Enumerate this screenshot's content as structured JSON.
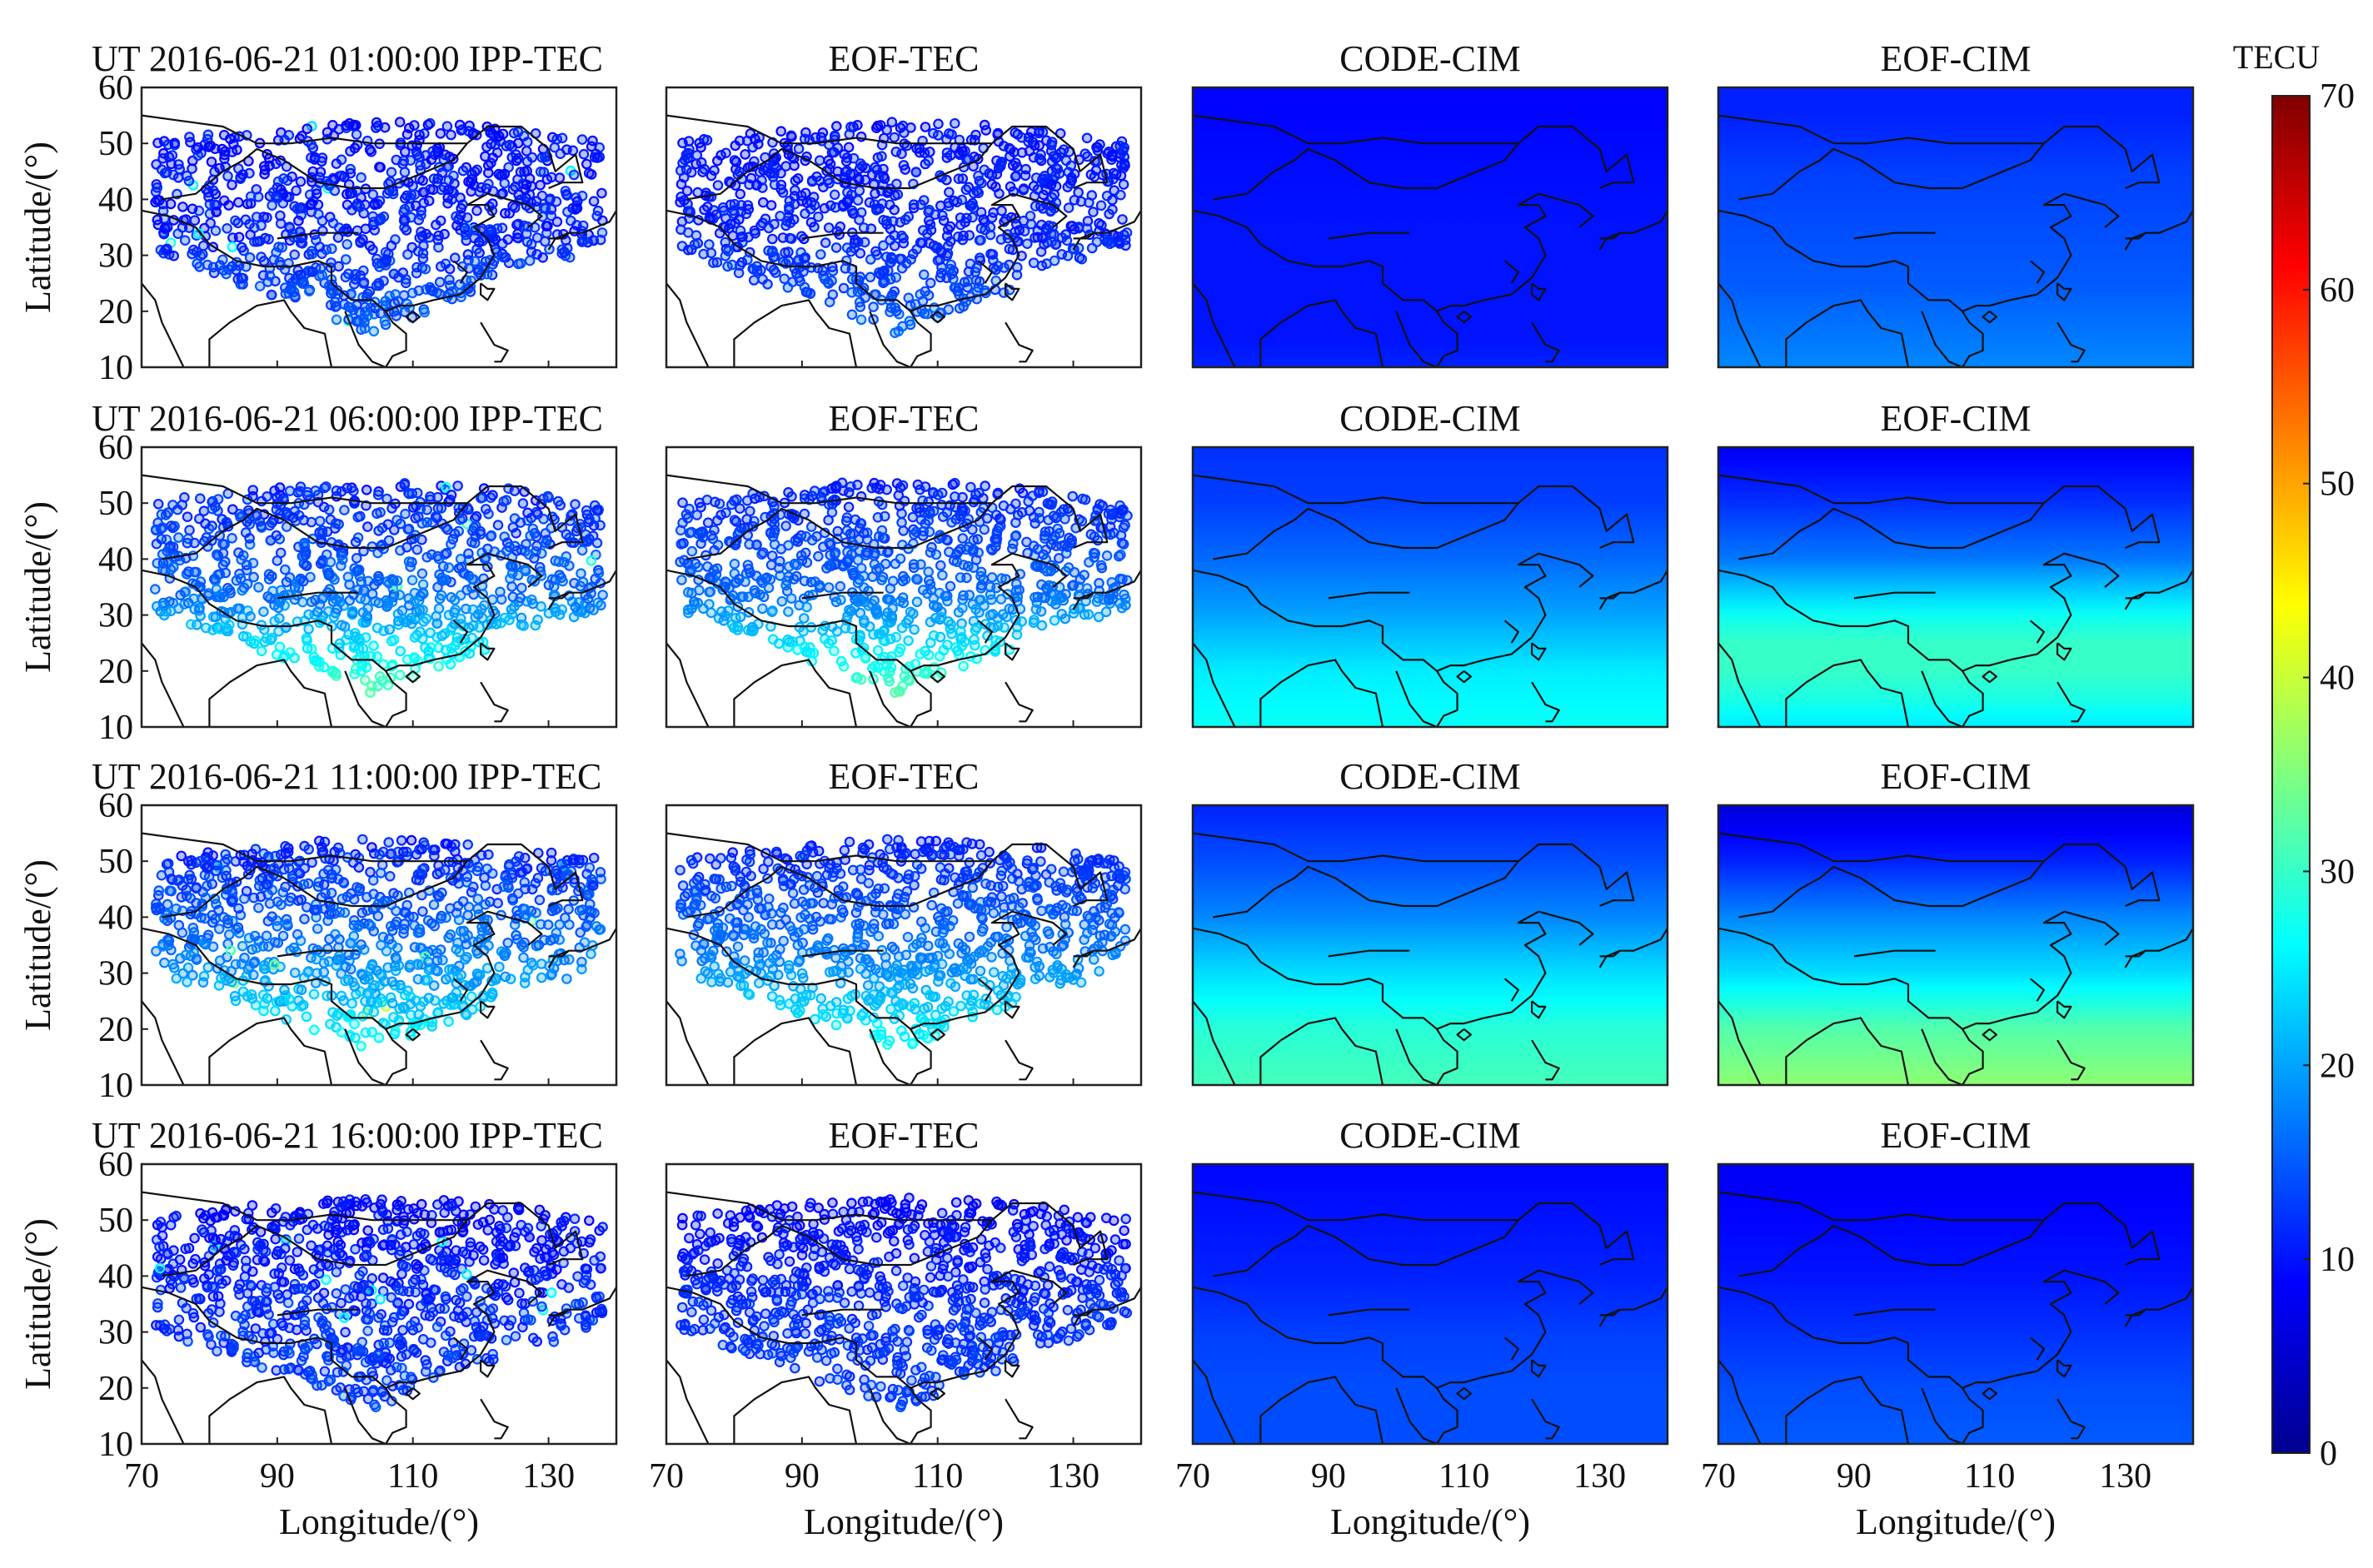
{
  "chart_data": {
    "type": "scatter",
    "description_title": "Ionospheric TEC maps over China",
    "date": "2016-06-21",
    "columns": [
      "IPP-TEC",
      "EOF-TEC",
      "CODE-CIM",
      "EOF-CIM"
    ],
    "ut_prefix": "UT 2016-06-21",
    "rows": [
      {
        "time": "01:00:00",
        "titles": [
          "UT 2016-06-21   01:00:00 IPP-TEC",
          "EOF-TEC",
          "CODE-CIM",
          "EOF-CIM"
        ],
        "points_tec": {
          "north": 10,
          "mid": 11,
          "south": 16
        },
        "map_keyframes_code": [
          [
            55,
            9
          ],
          [
            45,
            9.5
          ],
          [
            35,
            10
          ],
          [
            25,
            10
          ],
          [
            15,
            10
          ],
          [
            10,
            11
          ]
        ],
        "map_keyframes_eof": [
          [
            55,
            11
          ],
          [
            45,
            13
          ],
          [
            35,
            14
          ],
          [
            25,
            15
          ],
          [
            15,
            17
          ],
          [
            10,
            18
          ]
        ]
      },
      {
        "time": "06:00:00",
        "titles": [
          "UT 2016-06-21   06:00:00 IPP-TEC",
          "EOF-TEC",
          "CODE-CIM",
          "EOF-CIM"
        ],
        "points_tec": {
          "north": 11,
          "mid": 16,
          "south": 33
        },
        "map_keyframes_code": [
          [
            60,
            12
          ],
          [
            50,
            13
          ],
          [
            40,
            16
          ],
          [
            30,
            20
          ],
          [
            20,
            25
          ],
          [
            10,
            27
          ]
        ],
        "map_keyframes_eof": [
          [
            60,
            8
          ],
          [
            50,
            12
          ],
          [
            40,
            17
          ],
          [
            30,
            27
          ],
          [
            25,
            30
          ],
          [
            20,
            30
          ],
          [
            15,
            28
          ],
          [
            10,
            25
          ]
        ]
      },
      {
        "time": "11:00:00",
        "titles": [
          "UT 2016-06-21   11:00:00 IPP-TEC",
          "EOF-TEC",
          "CODE-CIM",
          "EOF-CIM"
        ],
        "points_tec": {
          "north": 11,
          "mid": 17,
          "south": 28
        },
        "map_keyframes_code": [
          [
            60,
            11
          ],
          [
            50,
            14
          ],
          [
            40,
            18
          ],
          [
            30,
            24
          ],
          [
            20,
            29
          ],
          [
            10,
            31
          ]
        ],
        "map_keyframes_eof": [
          [
            60,
            6
          ],
          [
            50,
            11
          ],
          [
            40,
            18
          ],
          [
            30,
            24
          ],
          [
            20,
            32
          ],
          [
            10,
            36
          ]
        ]
      },
      {
        "time": "16:00:00",
        "titles": [
          "UT 2016-06-21   16:00:00 IPP-TEC",
          "EOF-TEC",
          "CODE-CIM",
          "EOF-CIM"
        ],
        "points_tec": {
          "north": 9,
          "mid": 12,
          "south": 13
        },
        "map_keyframes_code": [
          [
            60,
            9
          ],
          [
            50,
            10
          ],
          [
            40,
            11
          ],
          [
            30,
            13
          ],
          [
            20,
            14
          ],
          [
            10,
            14
          ]
        ],
        "map_keyframes_eof": [
          [
            60,
            8
          ],
          [
            50,
            9
          ],
          [
            40,
            10
          ],
          [
            30,
            12
          ],
          [
            20,
            14
          ],
          [
            10,
            15
          ]
        ]
      }
    ],
    "xlabel": "Longitude/(°)",
    "ylabel": "Latitude/(°)",
    "xlim": [
      70,
      140
    ],
    "ylim": [
      10,
      60
    ],
    "xticks": [
      70,
      90,
      110,
      130
    ],
    "yticks": [
      10,
      20,
      30,
      40,
      50,
      60
    ],
    "colorbar": {
      "title": "TECU",
      "range": [
        0,
        70
      ],
      "ticks": [
        0,
        10,
        20,
        30,
        40,
        50,
        60,
        70
      ],
      "colormap": "jet"
    }
  }
}
